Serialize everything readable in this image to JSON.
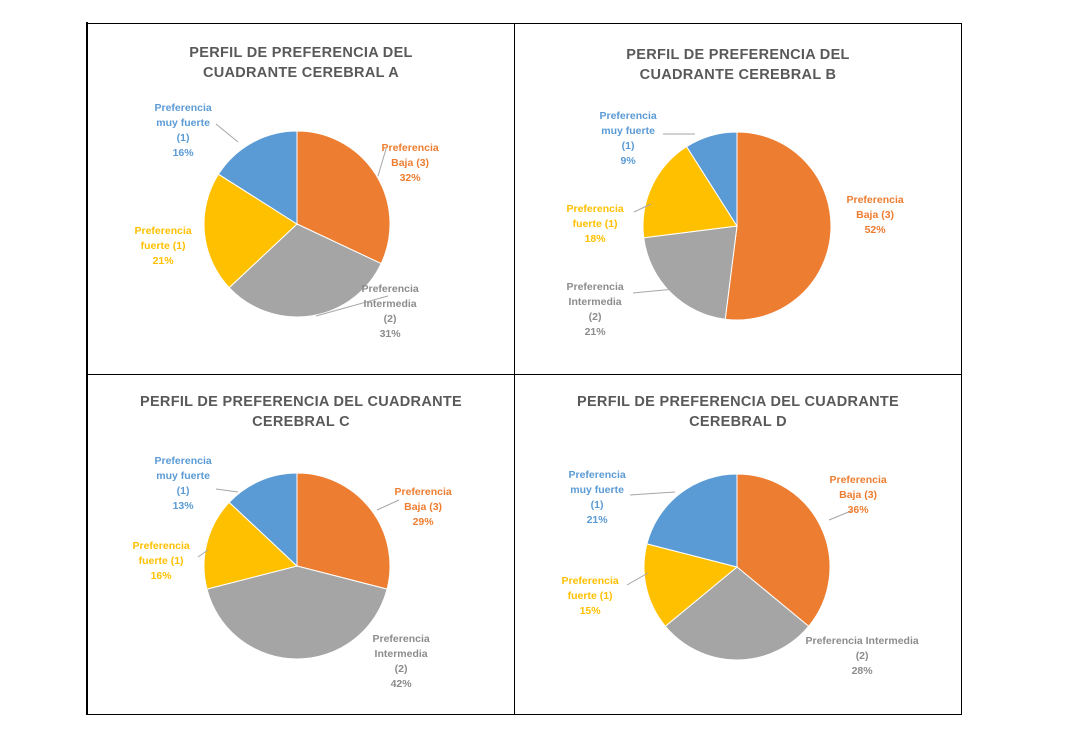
{
  "colors": {
    "muy_fuerte": "#5b9bd5",
    "baja": "#ed7d31",
    "intermedia": "#a5a5a5",
    "fuerte": "#ffc000"
  },
  "chart_data": [
    {
      "type": "pie",
      "title": "PERFIL DE PREFERENCIA DEL CUADRANTE CEREBRAL A",
      "title_lines": [
        "PERFIL DE PREFERENCIA DEL",
        "CUADRANTE CEREBRAL A"
      ],
      "slices": [
        {
          "key": "baja",
          "label_lines": [
            "Preferencia",
            "Baja (3)",
            "32%"
          ],
          "value": 32,
          "color": "#ed7d31"
        },
        {
          "key": "intermedia",
          "label_lines": [
            "Preferencia",
            "Intermedia",
            "(2)",
            "31%"
          ],
          "value": 31,
          "color": "#a5a5a5"
        },
        {
          "key": "fuerte",
          "label_lines": [
            "Preferencia",
            "fuerte (1)",
            "21%"
          ],
          "value": 21,
          "color": "#ffc000"
        },
        {
          "key": "muy_fuerte",
          "label_lines": [
            "Preferencia",
            "muy fuerte",
            "(1)",
            "16%"
          ],
          "value": 16,
          "color": "#5b9bd5"
        }
      ]
    },
    {
      "type": "pie",
      "title": "PERFIL DE PREFERENCIA DEL CUADRANTE CEREBRAL B",
      "title_lines": [
        "PERFIL DE PREFERENCIA DEL",
        "CUADRANTE CEREBRAL B"
      ],
      "slices": [
        {
          "key": "baja",
          "label_lines": [
            "Preferencia",
            "Baja (3)",
            "52%"
          ],
          "value": 52,
          "color": "#ed7d31"
        },
        {
          "key": "intermedia",
          "label_lines": [
            "Preferencia",
            "Intermedia",
            "(2)",
            "21%"
          ],
          "value": 21,
          "color": "#a5a5a5"
        },
        {
          "key": "fuerte",
          "label_lines": [
            "Preferencia",
            "fuerte (1)",
            "18%"
          ],
          "value": 18,
          "color": "#ffc000"
        },
        {
          "key": "muy_fuerte",
          "label_lines": [
            "Preferencia",
            "muy fuerte",
            "(1)",
            "9%"
          ],
          "value": 9,
          "color": "#5b9bd5"
        }
      ]
    },
    {
      "type": "pie",
      "title": "PERFIL DE PREFERENCIA DEL CUADRANTE CEREBRAL C",
      "title_lines": [
        "PERFIL DE PREFERENCIA DEL CUADRANTE",
        "CEREBRAL C"
      ],
      "slices": [
        {
          "key": "baja",
          "label_lines": [
            "Preferencia",
            "Baja (3)",
            "29%"
          ],
          "value": 29,
          "color": "#ed7d31"
        },
        {
          "key": "intermedia",
          "label_lines": [
            "Preferencia",
            "Intermedia",
            "(2)",
            "42%"
          ],
          "value": 42,
          "color": "#a5a5a5"
        },
        {
          "key": "fuerte",
          "label_lines": [
            "Preferencia",
            "fuerte (1)",
            "16%"
          ],
          "value": 16,
          "color": "#ffc000"
        },
        {
          "key": "muy_fuerte",
          "label_lines": [
            "Preferencia",
            "muy fuerte",
            "(1)",
            "13%"
          ],
          "value": 13,
          "color": "#5b9bd5"
        }
      ]
    },
    {
      "type": "pie",
      "title": "PERFIL DE PREFERENCIA DEL CUADRANTE CEREBRAL D",
      "title_lines": [
        "PERFIL DE PREFERENCIA DEL CUADRANTE",
        "CEREBRAL D"
      ],
      "slices": [
        {
          "key": "baja",
          "label_lines": [
            "Preferencia",
            "Baja (3)",
            "36%"
          ],
          "value": 36,
          "color": "#ed7d31"
        },
        {
          "key": "intermedia",
          "label_lines": [
            "Preferencia Intermedia",
            "(2)",
            "28%"
          ],
          "value": 28,
          "color": "#a5a5a5"
        },
        {
          "key": "fuerte",
          "label_lines": [
            "Preferencia",
            "fuerte (1)",
            "15%"
          ],
          "value": 15,
          "color": "#ffc000"
        },
        {
          "key": "muy_fuerte",
          "label_lines": [
            "Preferencia",
            "muy fuerte",
            "(1)",
            "21%"
          ],
          "value": 21,
          "color": "#5b9bd5"
        }
      ]
    }
  ]
}
